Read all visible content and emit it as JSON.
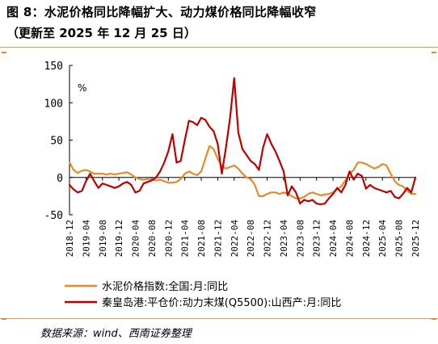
{
  "header": {
    "title": "图 8：水泥价格同比降幅扩大、动力煤价格同比降幅收窄",
    "subtitle": "（更新至 2025 年 12 月 25 日）"
  },
  "footer": {
    "source": "数据来源：wind、西南证券整理"
  },
  "chart_data": {
    "type": "line",
    "unit_label": "%",
    "ylim": [
      -50,
      150
    ],
    "yticks": [
      -50,
      0,
      50,
      100,
      150
    ],
    "grid": false,
    "legend_position": "bottom",
    "categories": [
      "2018-12",
      "2019-04",
      "2019-08",
      "2019-12",
      "2020-04",
      "2020-08",
      "2020-12",
      "2021-04",
      "2021-08",
      "2021-12",
      "2022-04",
      "2022-08",
      "2022-12",
      "2023-04",
      "2023-08",
      "2023-12",
      "2024-04",
      "2024-08",
      "2024-12",
      "2025-04",
      "2025-08",
      "2025-12"
    ],
    "x_range": [
      "2018-12",
      "2025-12"
    ],
    "colors": {
      "cement": "#e8892a",
      "coal": "#c00000"
    },
    "series": [
      {
        "key": "cement",
        "name": "水泥价格指数:全国:月:同比",
        "points": [
          [
            "2018-12",
            20
          ],
          [
            "2019-01",
            10
          ],
          [
            "2019-02",
            6
          ],
          [
            "2019-03",
            9
          ],
          [
            "2019-04",
            10
          ],
          [
            "2019-05",
            8
          ],
          [
            "2019-06",
            5
          ],
          [
            "2019-07",
            5
          ],
          [
            "2019-08",
            5
          ],
          [
            "2019-09",
            4
          ],
          [
            "2019-10",
            5
          ],
          [
            "2019-11",
            4
          ],
          [
            "2019-12",
            5
          ],
          [
            "2020-01",
            6
          ],
          [
            "2020-02",
            7
          ],
          [
            "2020-03",
            4
          ],
          [
            "2020-04",
            0
          ],
          [
            "2020-05",
            -2
          ],
          [
            "2020-06",
            -3
          ],
          [
            "2020-07",
            -2
          ],
          [
            "2020-08",
            -3
          ],
          [
            "2020-09",
            -4
          ],
          [
            "2020-10",
            -3
          ],
          [
            "2020-11",
            -5
          ],
          [
            "2020-12",
            -7
          ],
          [
            "2021-01",
            -7
          ],
          [
            "2021-02",
            -6
          ],
          [
            "2021-03",
            -2
          ],
          [
            "2021-04",
            5
          ],
          [
            "2021-05",
            8
          ],
          [
            "2021-06",
            5
          ],
          [
            "2021-07",
            3
          ],
          [
            "2021-08",
            8
          ],
          [
            "2021-09",
            25
          ],
          [
            "2021-10",
            42
          ],
          [
            "2021-11",
            38
          ],
          [
            "2021-12",
            25
          ],
          [
            "2022-01",
            15
          ],
          [
            "2022-02",
            12
          ],
          [
            "2022-03",
            14
          ],
          [
            "2022-04",
            16
          ],
          [
            "2022-05",
            12
          ],
          [
            "2022-06",
            5
          ],
          [
            "2022-07",
            0
          ],
          [
            "2022-08",
            -2
          ],
          [
            "2022-09",
            -10
          ],
          [
            "2022-10",
            -25
          ],
          [
            "2022-11",
            -25
          ],
          [
            "2022-12",
            -22
          ],
          [
            "2023-01",
            -20
          ],
          [
            "2023-02",
            -20
          ],
          [
            "2023-03",
            -22
          ],
          [
            "2023-04",
            -20
          ],
          [
            "2023-05",
            -22
          ],
          [
            "2023-06",
            -25
          ],
          [
            "2023-07",
            -28
          ],
          [
            "2023-08",
            -28
          ],
          [
            "2023-09",
            -26
          ],
          [
            "2023-10",
            -22
          ],
          [
            "2023-11",
            -20
          ],
          [
            "2023-12",
            -22
          ],
          [
            "2024-01",
            -24
          ],
          [
            "2024-02",
            -23
          ],
          [
            "2024-03",
            -22
          ],
          [
            "2024-04",
            -20
          ],
          [
            "2024-05",
            -16
          ],
          [
            "2024-06",
            -12
          ],
          [
            "2024-07",
            -4
          ],
          [
            "2024-08",
            5
          ],
          [
            "2024-09",
            10
          ],
          [
            "2024-10",
            20
          ],
          [
            "2024-11",
            20
          ],
          [
            "2024-12",
            18
          ],
          [
            "2025-01",
            15
          ],
          [
            "2025-02",
            12
          ],
          [
            "2025-03",
            14
          ],
          [
            "2025-04",
            18
          ],
          [
            "2025-05",
            16
          ],
          [
            "2025-06",
            5
          ],
          [
            "2025-07",
            -5
          ],
          [
            "2025-08",
            -10
          ],
          [
            "2025-09",
            -12
          ],
          [
            "2025-10",
            -18
          ],
          [
            "2025-11",
            -22
          ],
          [
            "2025-12",
            -22
          ]
        ]
      },
      {
        "key": "coal",
        "name": "秦皇岛港:平仓价:动力末煤(Q5500):山西产:月:同比",
        "points": [
          [
            "2018-12",
            -10
          ],
          [
            "2019-01",
            -16
          ],
          [
            "2019-02",
            -20
          ],
          [
            "2019-03",
            -18
          ],
          [
            "2019-04",
            -5
          ],
          [
            "2019-05",
            5
          ],
          [
            "2019-06",
            -5
          ],
          [
            "2019-07",
            -14
          ],
          [
            "2019-08",
            -8
          ],
          [
            "2019-09",
            -10
          ],
          [
            "2019-10",
            -12
          ],
          [
            "2019-11",
            -14
          ],
          [
            "2019-12",
            -12
          ],
          [
            "2020-01",
            -8
          ],
          [
            "2020-02",
            -6
          ],
          [
            "2020-03",
            -10
          ],
          [
            "2020-04",
            -20
          ],
          [
            "2020-05",
            -18
          ],
          [
            "2020-06",
            -8
          ],
          [
            "2020-07",
            -6
          ],
          [
            "2020-08",
            -4
          ],
          [
            "2020-09",
            0
          ],
          [
            "2020-10",
            8
          ],
          [
            "2020-11",
            20
          ],
          [
            "2020-12",
            35
          ],
          [
            "2021-01",
            58
          ],
          [
            "2021-02",
            20
          ],
          [
            "2021-03",
            22
          ],
          [
            "2021-04",
            50
          ],
          [
            "2021-05",
            76
          ],
          [
            "2021-06",
            74
          ],
          [
            "2021-07",
            70
          ],
          [
            "2021-08",
            80
          ],
          [
            "2021-09",
            77
          ],
          [
            "2021-10",
            68
          ],
          [
            "2021-11",
            62
          ],
          [
            "2021-12",
            45
          ],
          [
            "2022-01",
            5
          ],
          [
            "2022-02",
            40
          ],
          [
            "2022-03",
            80
          ],
          [
            "2022-04",
            133
          ],
          [
            "2022-05",
            60
          ],
          [
            "2022-06",
            38
          ],
          [
            "2022-07",
            30
          ],
          [
            "2022-08",
            22
          ],
          [
            "2022-09",
            18
          ],
          [
            "2022-10",
            10
          ],
          [
            "2022-11",
            40
          ],
          [
            "2022-12",
            58
          ],
          [
            "2023-01",
            45
          ],
          [
            "2023-02",
            35
          ],
          [
            "2023-03",
            22
          ],
          [
            "2023-04",
            8
          ],
          [
            "2023-05",
            -24
          ],
          [
            "2023-06",
            -12
          ],
          [
            "2023-07",
            -20
          ],
          [
            "2023-08",
            -35
          ],
          [
            "2023-09",
            -30
          ],
          [
            "2023-10",
            -32
          ],
          [
            "2023-11",
            -30
          ],
          [
            "2023-12",
            -35
          ],
          [
            "2024-01",
            -36
          ],
          [
            "2024-02",
            -35
          ],
          [
            "2024-03",
            -28
          ],
          [
            "2024-04",
            -22
          ],
          [
            "2024-05",
            -14
          ],
          [
            "2024-06",
            -20
          ],
          [
            "2024-07",
            -10
          ],
          [
            "2024-08",
            8
          ],
          [
            "2024-09",
            -3
          ],
          [
            "2024-10",
            5
          ],
          [
            "2024-11",
            2
          ],
          [
            "2024-12",
            -15
          ],
          [
            "2025-01",
            -10
          ],
          [
            "2025-02",
            -14
          ],
          [
            "2025-03",
            -16
          ],
          [
            "2025-04",
            -18
          ],
          [
            "2025-05",
            -20
          ],
          [
            "2025-06",
            -18
          ],
          [
            "2025-07",
            -26
          ],
          [
            "2025-08",
            -28
          ],
          [
            "2025-09",
            -22
          ],
          [
            "2025-10",
            -14
          ],
          [
            "2025-11",
            -20
          ],
          [
            "2025-12",
            0
          ]
        ]
      }
    ]
  }
}
